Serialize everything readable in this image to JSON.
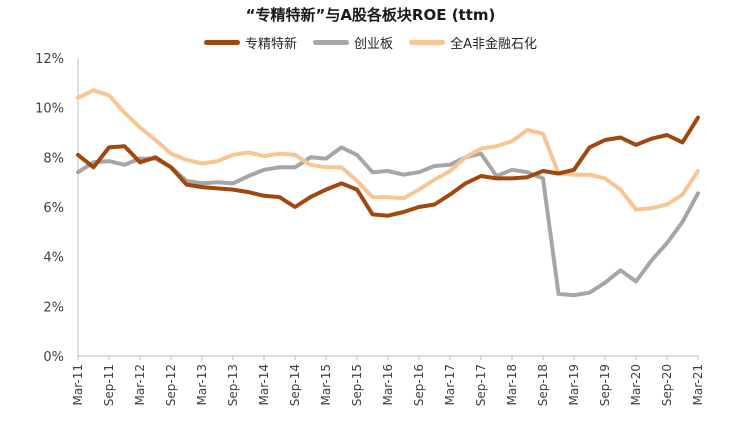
{
  "chart_data": {
    "type": "line",
    "title": "“专精特新”与A股各板块ROE (ttm)",
    "xlabel": "",
    "ylabel": "",
    "ylim": [
      0,
      12
    ],
    "yticks": [
      "0%",
      "2%",
      "4%",
      "6%",
      "8%",
      "10%",
      "12%"
    ],
    "xticks": [
      "Mar-11",
      "Sep-11",
      "Mar-12",
      "Sep-12",
      "Mar-13",
      "Sep-13",
      "Mar-14",
      "Sep-14",
      "Mar-15",
      "Sep-15",
      "Mar-16",
      "Sep-16",
      "Mar-17",
      "Sep-17",
      "Mar-18",
      "Sep-18",
      "Mar-19",
      "Sep-19",
      "Mar-20",
      "Sep-20",
      "Mar-21"
    ],
    "grid": false,
    "legend_position": "top",
    "series": [
      {
        "name": "专精特新",
        "color": "#a0480f",
        "values": [
          8.1,
          7.6,
          8.4,
          8.45,
          7.8,
          8.0,
          7.6,
          6.9,
          6.8,
          6.75,
          6.7,
          6.6,
          6.45,
          6.4,
          6.0,
          6.4,
          6.7,
          6.95,
          6.7,
          5.7,
          5.65,
          5.8,
          6.0,
          6.1,
          6.5,
          6.95,
          7.25,
          7.15,
          7.15,
          7.2,
          7.45,
          7.35,
          7.5,
          8.4,
          8.7,
          8.8,
          8.5,
          8.75,
          8.9,
          8.6,
          9.6
        ]
      },
      {
        "name": "创业板",
        "color": "#a6a6a6",
        "values": [
          7.4,
          7.8,
          7.85,
          7.7,
          7.95,
          7.95,
          7.6,
          7.05,
          6.95,
          7.0,
          6.95,
          7.25,
          7.5,
          7.6,
          7.6,
          8.0,
          7.95,
          8.4,
          8.1,
          7.4,
          7.45,
          7.3,
          7.4,
          7.65,
          7.7,
          8.0,
          8.15,
          7.25,
          7.5,
          7.4,
          7.15,
          2.5,
          2.45,
          2.55,
          2.95,
          3.45,
          3.0,
          3.85,
          4.55,
          5.4,
          6.55
        ]
      },
      {
        "name": "全A非金融石化",
        "color": "#f8c593",
        "values": [
          10.4,
          10.7,
          10.5,
          9.8,
          9.2,
          8.7,
          8.15,
          7.9,
          7.75,
          7.85,
          8.1,
          8.2,
          8.05,
          8.15,
          8.1,
          7.7,
          7.6,
          7.6,
          7.05,
          6.4,
          6.4,
          6.35,
          6.7,
          7.1,
          7.45,
          8.0,
          8.35,
          8.45,
          8.65,
          9.1,
          8.95,
          7.35,
          7.3,
          7.3,
          7.15,
          6.7,
          5.9,
          5.95,
          6.1,
          6.5,
          7.45
        ]
      }
    ]
  }
}
